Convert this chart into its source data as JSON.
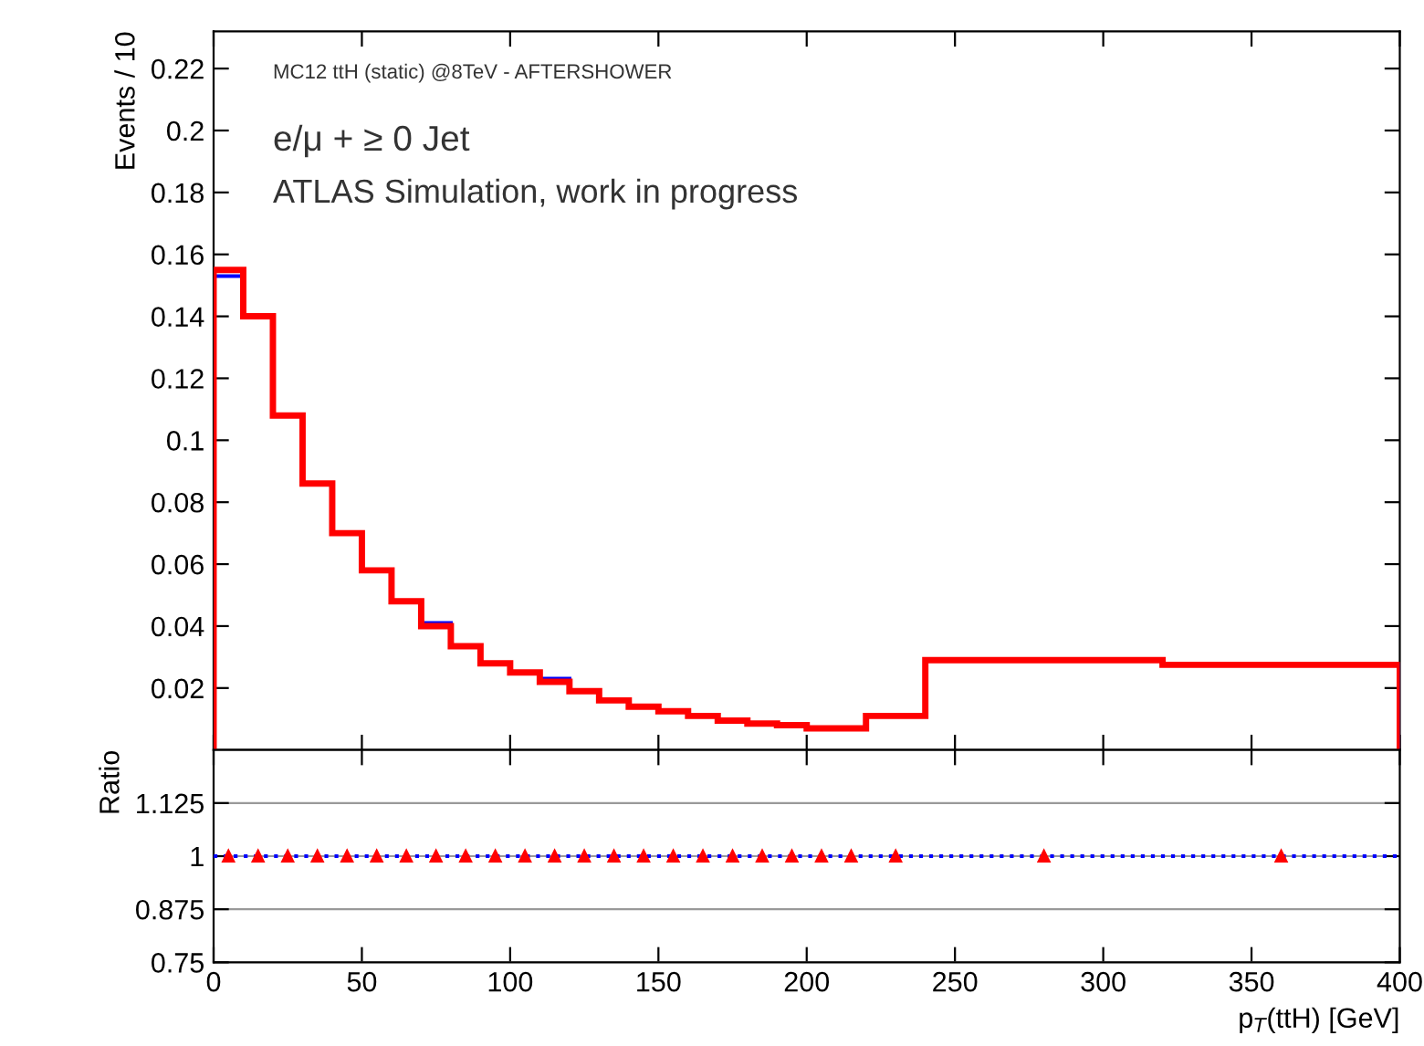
{
  "chart_data": [
    {
      "type": "histogram",
      "ylabel": "Events / 10",
      "annotations": [
        "MC12 ttH (static) @8TeV - AFTERSHOWER",
        "e/μ + ≥ 0 Jet",
        "ATLAS Simulation, work in progress"
      ],
      "bins": [
        0,
        10,
        20,
        30,
        40,
        50,
        60,
        70,
        80,
        90,
        100,
        110,
        120,
        130,
        140,
        150,
        160,
        170,
        180,
        190,
        200,
        210,
        220,
        240,
        320,
        400
      ],
      "series": [
        {
          "color": "#0000ff",
          "values": [
            0.153,
            0.14,
            0.108,
            0.086,
            0.07,
            0.058,
            0.048,
            0.041,
            0.0335,
            0.028,
            0.025,
            0.023,
            0.019,
            0.016,
            0.014,
            0.0125,
            0.011,
            0.0095,
            0.0085,
            0.008,
            0.007,
            0.007,
            0.011,
            0.029,
            0.0275
          ]
        },
        {
          "color": "#ff0000",
          "values": [
            0.155,
            0.14,
            0.108,
            0.086,
            0.07,
            0.058,
            0.048,
            0.04,
            0.0335,
            0.028,
            0.025,
            0.022,
            0.019,
            0.016,
            0.014,
            0.0125,
            0.011,
            0.0095,
            0.0085,
            0.008,
            0.007,
            0.007,
            0.011,
            0.029,
            0.0275
          ]
        }
      ],
      "xlim": [
        0,
        400
      ],
      "ylim": [
        0,
        0.232
      ],
      "xticks": [
        0,
        50,
        100,
        150,
        200,
        250,
        300,
        350,
        400
      ],
      "yticks": [
        0.02,
        0.04,
        0.06,
        0.08,
        0.1,
        0.12,
        0.14,
        0.16,
        0.18,
        0.2,
        0.22
      ],
      "tick_labels": "y",
      "grid": false
    },
    {
      "type": "scatter",
      "ylabel": "Ratio",
      "xlabel": "p$_{T}$(ttH) [GeV]",
      "x": [
        5,
        15,
        25,
        35,
        45,
        55,
        65,
        75,
        85,
        95,
        105,
        115,
        125,
        135,
        145,
        155,
        165,
        175,
        185,
        195,
        205,
        215,
        230,
        280,
        360
      ],
      "series": [
        {
          "color": "#ff0000",
          "values": [
            1,
            1,
            1,
            1,
            1,
            1,
            1,
            1,
            1,
            1,
            1,
            1,
            1,
            1,
            1,
            1,
            1,
            1,
            1,
            1,
            1,
            1,
            1,
            1,
            1
          ],
          "errors": [
            0.002,
            0.002,
            0.003,
            0.003,
            0.003,
            0.003,
            0.003,
            0.003,
            0.003,
            0.003,
            0.003,
            0.003,
            0.003,
            0.003,
            0.003,
            0.003,
            0.006,
            0.006,
            0.006,
            0.006,
            0.008,
            0.008,
            0.006,
            0.002,
            0.002
          ]
        }
      ],
      "marker": "triangle",
      "ref_lines": [
        {
          "axis": "y",
          "value": 1,
          "color": "#0000ff",
          "line_style": "dotted"
        }
      ],
      "xlim": [
        0,
        400
      ],
      "ylim": [
        0.75,
        1.25
      ],
      "xticks": [
        0,
        50,
        100,
        150,
        200,
        250,
        300,
        350,
        400
      ],
      "yticks": [
        0.75,
        0.875,
        1,
        1.125
      ],
      "grid": "y"
    }
  ]
}
